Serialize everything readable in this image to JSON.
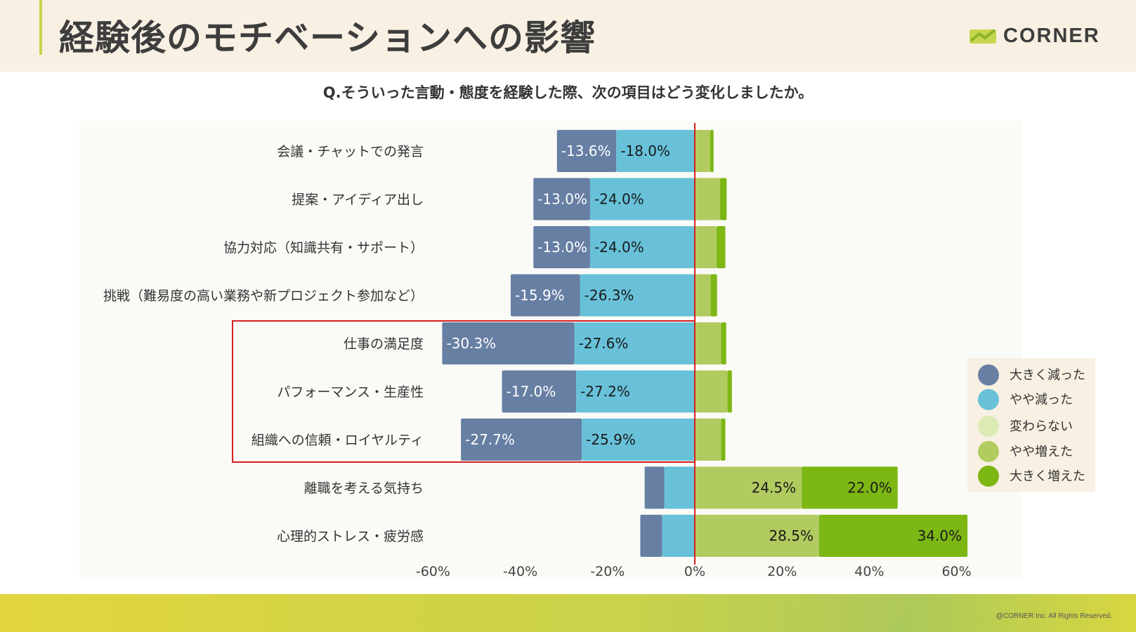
{
  "header": {
    "title": "経験後のモチベーションへの影響",
    "logo_text": "CORNER"
  },
  "footer": {
    "copyright": "@CORNER Inc. All Rights Reserved."
  },
  "chart_data": {
    "type": "bar",
    "orientation": "horizontal",
    "stacked": "diverging",
    "title": "Q.そういった言動・態度を経験した際、次の項目はどう変化しましたか。",
    "xlim": [
      -60,
      60
    ],
    "x_ticks": [
      "-60%",
      "-40%",
      "-20%",
      "0%",
      "20%",
      "40%",
      "60%"
    ],
    "x_tick_values": [
      -60,
      -40,
      -20,
      0,
      20,
      40,
      60
    ],
    "categories": [
      "会議・チャットでの発言",
      "提案・アイディア出し",
      "協力対応（知識共有・サポート）",
      "挑戦（難易度の高い業務や新プロジェクト参加など）",
      "仕事の満足度",
      "パフォーマンス・生産性",
      "組織への信頼・ロイヤルティ",
      "離職を考える気持ち",
      "心理的ストレス・疲労感"
    ],
    "series": [
      {
        "name": "大きく減った",
        "color": "#677fa3",
        "values": [
          -13.6,
          -13.0,
          -13.0,
          -15.9,
          -30.3,
          -17.0,
          -27.7,
          -4.5,
          -5.0
        ],
        "labels": [
          "-13.6%",
          "-13.0%",
          "-13.0%",
          "-15.9%",
          "-30.3%",
          "-17.0%",
          "-27.7%",
          "",
          ""
        ]
      },
      {
        "name": "やや減った",
        "color": "#68c1d9",
        "values": [
          -18.0,
          -24.0,
          -24.0,
          -26.3,
          -27.6,
          -27.2,
          -25.9,
          -7.0,
          -7.5
        ],
        "labels": [
          "-18.0%",
          "-24.0%",
          "-24.0%",
          "-26.3%",
          "-27.6%",
          "-27.2%",
          "-25.9%",
          "",
          ""
        ]
      },
      {
        "name": "変わらない",
        "color": "#dcebb4",
        "values": [
          0,
          0,
          0,
          0,
          0,
          0,
          0,
          0,
          0
        ],
        "labels": [
          "",
          "",
          "",
          "",
          "",
          "",
          "",
          "",
          ""
        ]
      },
      {
        "name": "やや増えた",
        "color": "#b1cb60",
        "values": [
          3.5,
          5.8,
          5.0,
          3.6,
          6.0,
          7.5,
          6.0,
          24.5,
          28.5
        ],
        "labels": [
          "",
          "",
          "",
          "",
          "",
          "",
          "",
          "24.5%",
          "28.5%"
        ]
      },
      {
        "name": "大きく増えた",
        "color": "#7cb714",
        "values": [
          0.8,
          1.5,
          2.0,
          1.5,
          1.2,
          1.0,
          1.0,
          22.0,
          34.0
        ],
        "labels": [
          "",
          "",
          "",
          "",
          "",
          "",
          "",
          "22.0%",
          "34.0%"
        ]
      }
    ],
    "highlight_categories": [
      "仕事の満足度",
      "パフォーマンス・生産性",
      "組織への信頼・ロイヤルティ"
    ],
    "highlight_color": "#d42020",
    "zero_line_color": "#d42020",
    "legend_position": "right"
  }
}
